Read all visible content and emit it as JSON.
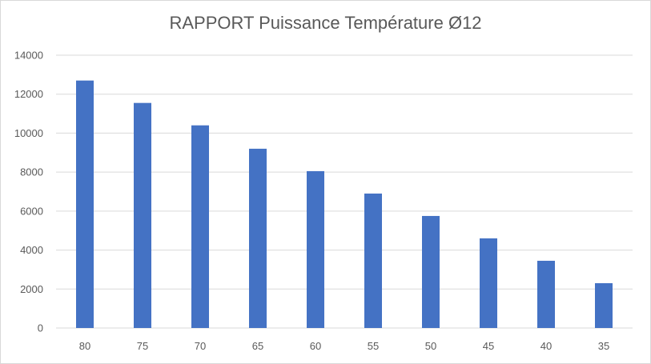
{
  "chart_data": {
    "type": "bar",
    "title": "RAPPORT Puissance Température Ø12",
    "xlabel": "",
    "ylabel": "",
    "categories": [
      "80",
      "75",
      "70",
      "65",
      "60",
      "55",
      "50",
      "45",
      "40",
      "35"
    ],
    "values": [
      12700,
      11550,
      10400,
      9200,
      8050,
      6900,
      5750,
      4600,
      3450,
      2300
    ],
    "ylim": [
      0,
      14000
    ],
    "yticks": [
      "0",
      "2000",
      "4000",
      "6000",
      "8000",
      "10000",
      "12000",
      "14000"
    ],
    "grid": true,
    "legend": "none",
    "bar_color": "#4472c4",
    "grid_color": "#d9d9d9"
  }
}
